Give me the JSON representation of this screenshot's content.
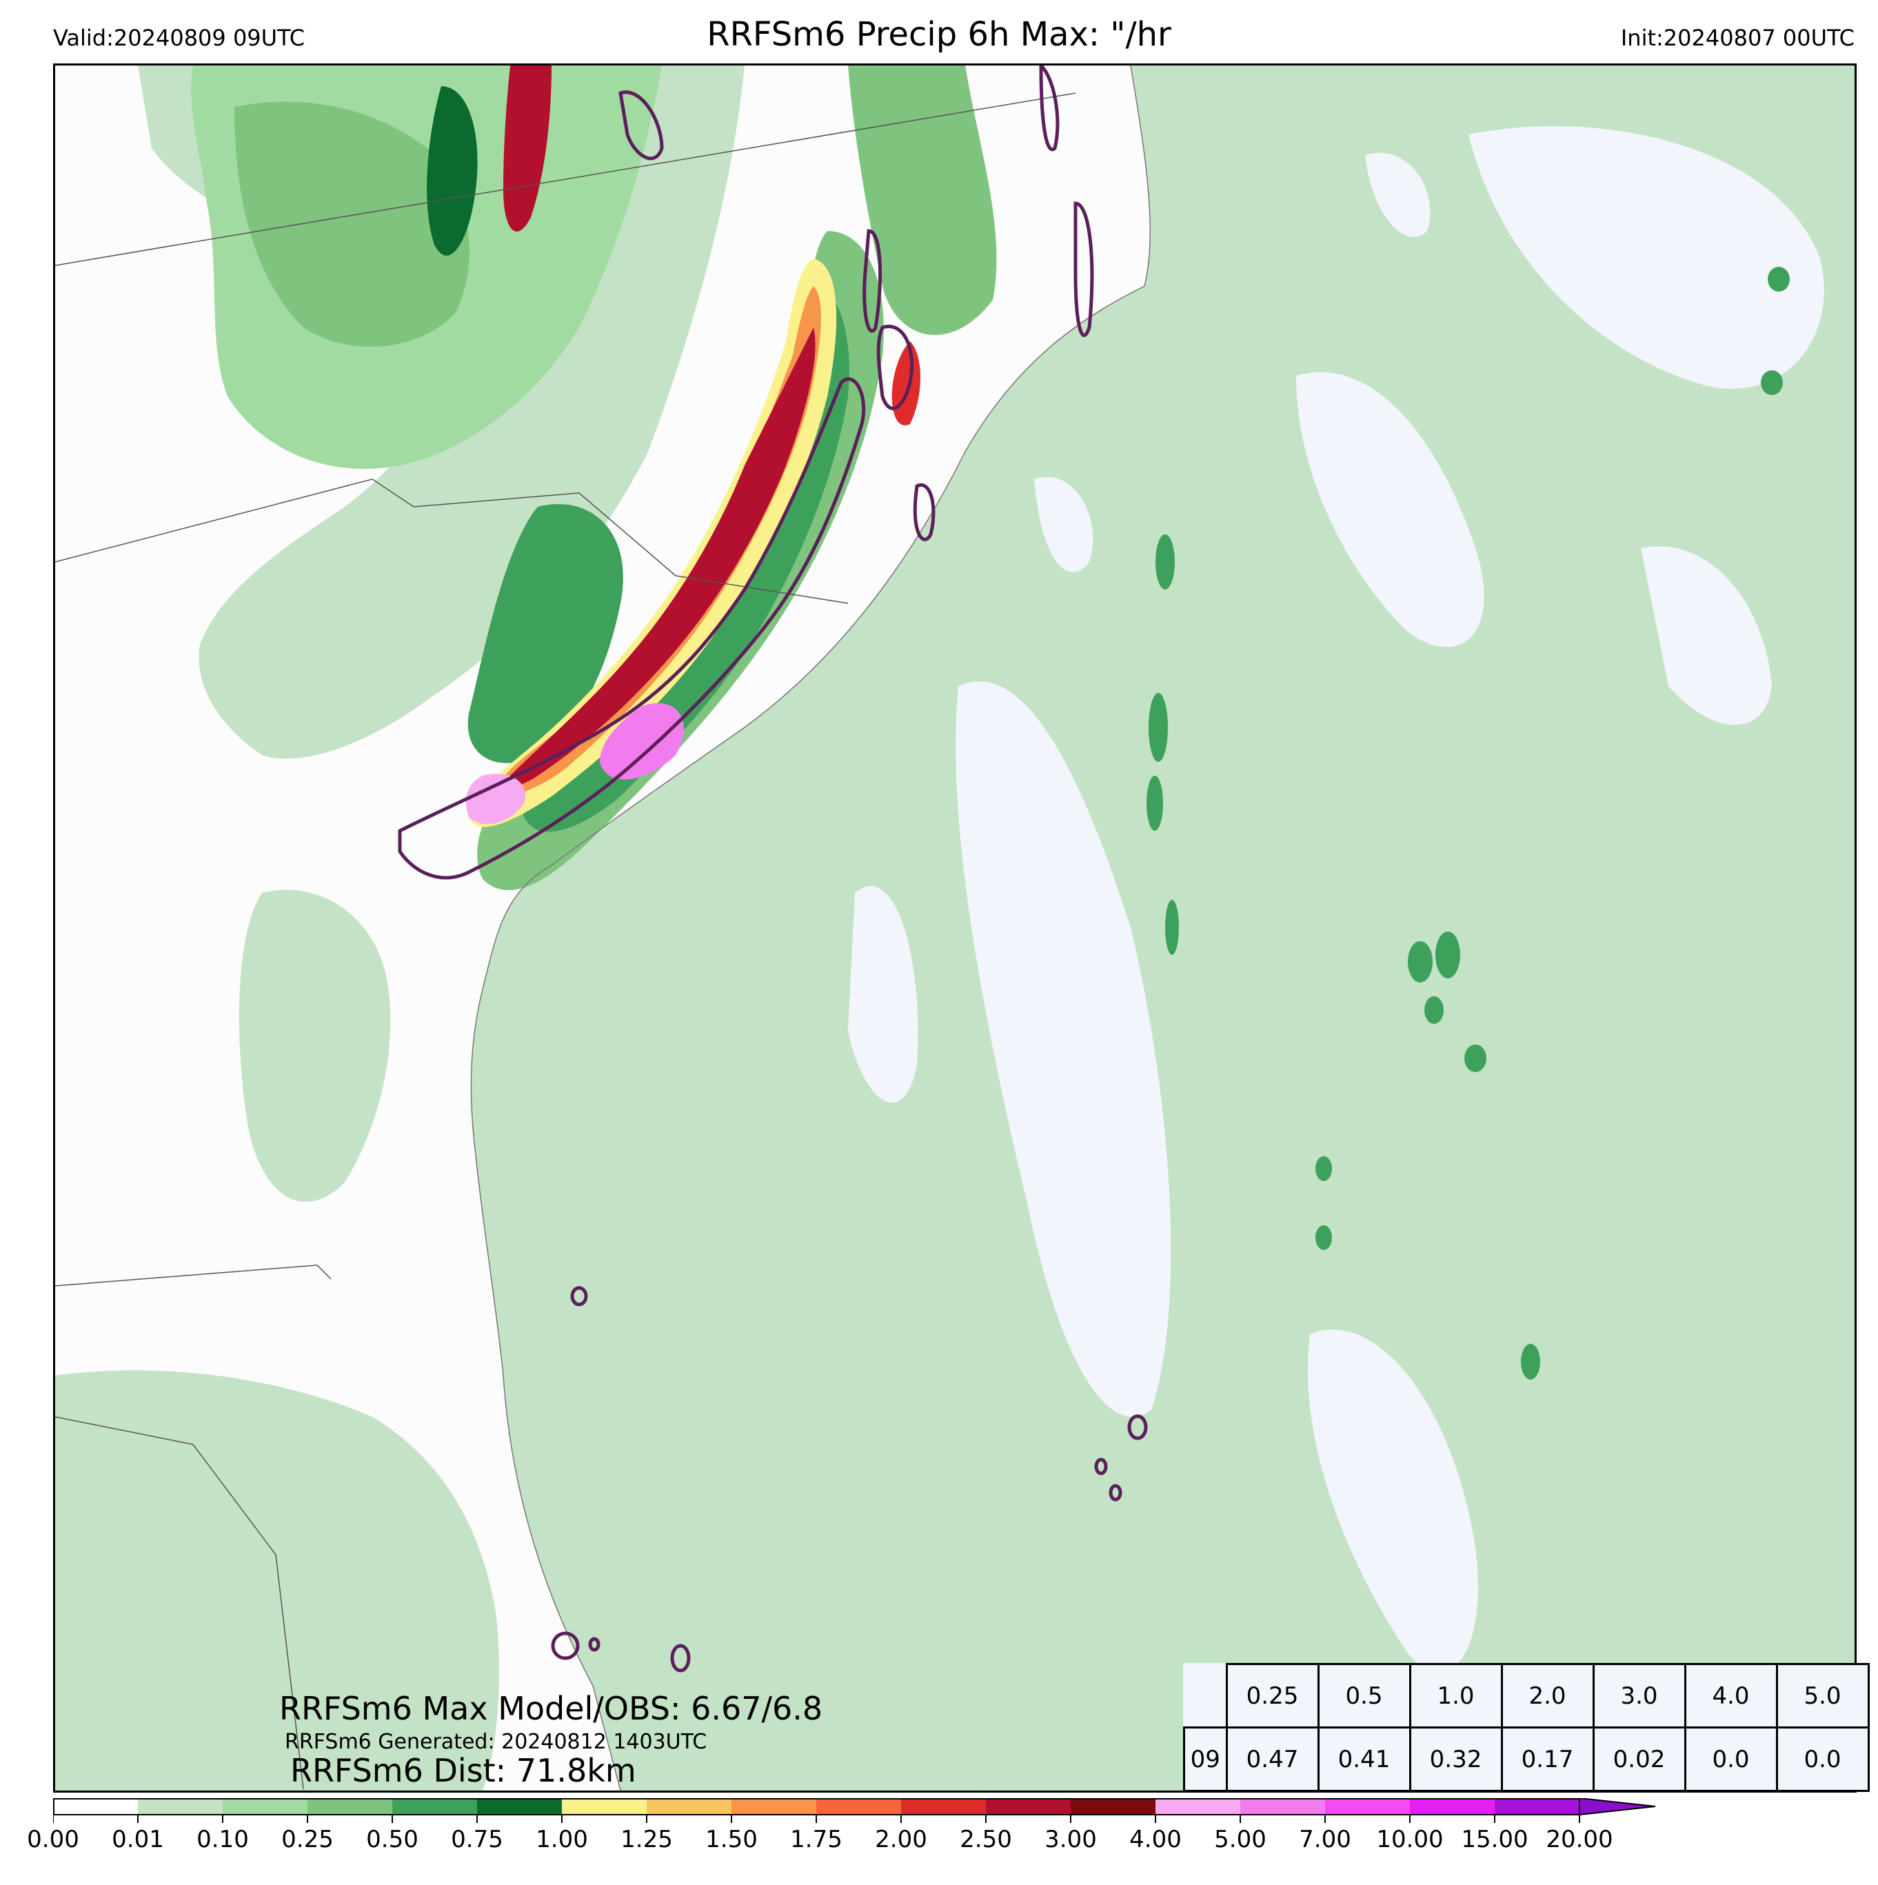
{
  "header": {
    "valid": "Valid:20240809 09UTC",
    "title": "RRFSm6 Precip 6h Max: \"/hr",
    "init": "Init:20240807 00UTC"
  },
  "stats": {
    "max_line": "RRFSm6 Max Model/OBS: 6.67/6.8",
    "generated_line": "RRFSm6 Generated: 20240812 1403UTC",
    "dist_line": "RRFSm6 Dist: 71.8km"
  },
  "threshold_table": {
    "thresholds": [
      "0.25",
      "0.5",
      "1.0",
      "2.0",
      "3.0",
      "4.0",
      "5.0"
    ],
    "row_label": "09",
    "fractions": [
      "0.47",
      "0.41",
      "0.32",
      "0.17",
      "0.02",
      "0.0",
      "0.0"
    ]
  },
  "colorbar": {
    "ticks": [
      "0.00",
      "0.01",
      "0.10",
      "0.25",
      "0.50",
      "0.75",
      "1.00",
      "1.25",
      "1.50",
      "1.75",
      "2.00",
      "2.50",
      "3.00",
      "4.00",
      "5.00",
      "7.00",
      "10.00",
      "15.00",
      "20.00"
    ],
    "colors": [
      "#ffffff",
      "#c4e2c6",
      "#a2dba2",
      "#7ec47e",
      "#3ea15b",
      "#0b6b2e",
      "#fbf18c",
      "#f7c45e",
      "#f7954a",
      "#f5663a",
      "#e02b2b",
      "#b2102e",
      "#7a0a0d",
      "#f7aaf2",
      "#f27cee",
      "#f54bf2",
      "#e51ef2",
      "#a612d8"
    ],
    "extend_color": "#8a0fcc"
  },
  "map": {
    "ocean_color": "#c4e2c6",
    "land_color": "#fcfcfc",
    "observed_contour_color": "#5b1f5a"
  }
}
